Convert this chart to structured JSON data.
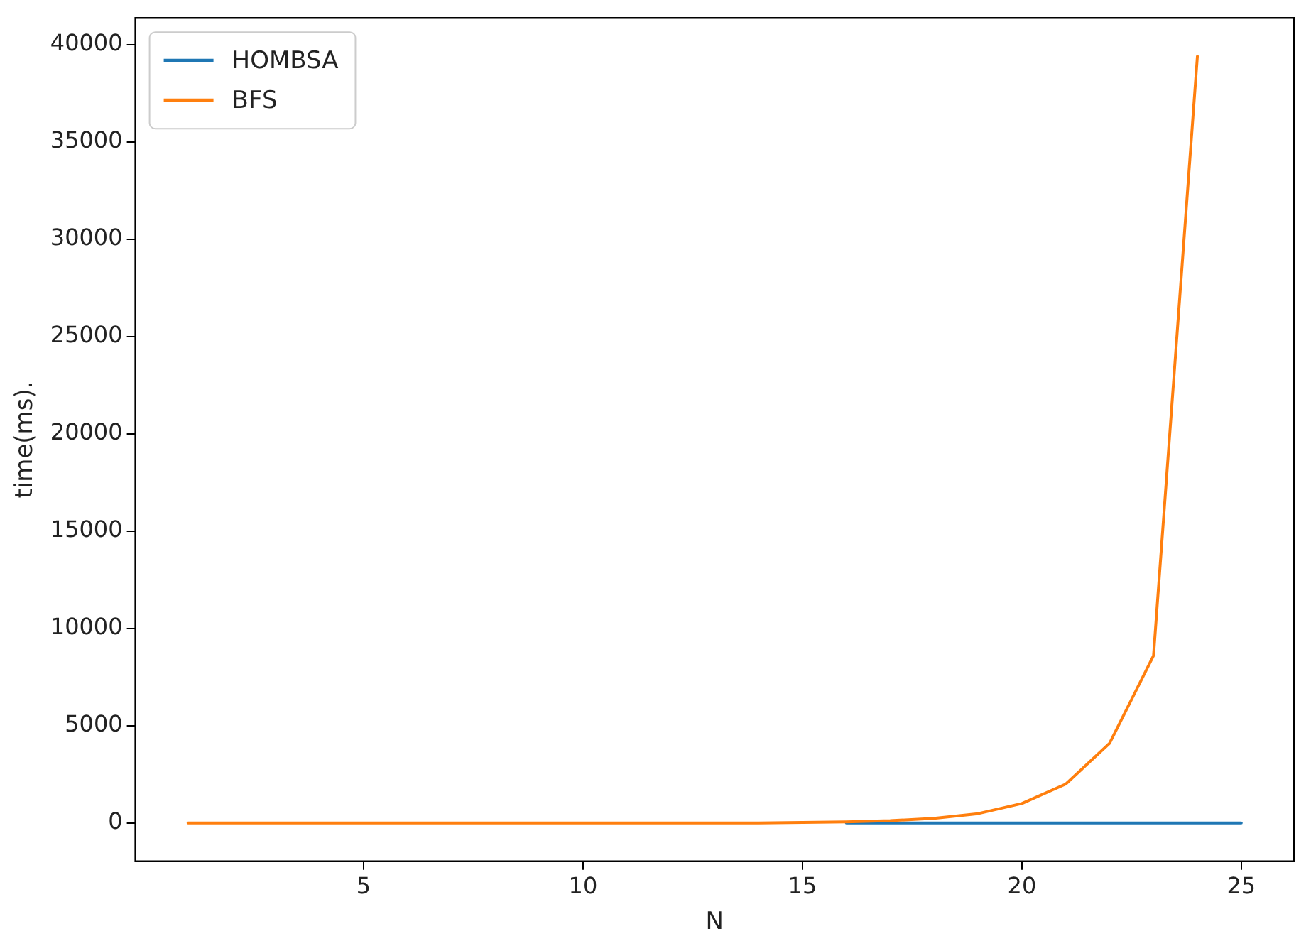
{
  "chart_data": {
    "type": "line",
    "xlabel": "N",
    "ylabel": "time(ms).",
    "x": [
      1,
      2,
      3,
      4,
      5,
      6,
      7,
      8,
      9,
      10,
      11,
      12,
      13,
      14,
      15,
      16,
      17,
      18,
      19,
      20,
      21,
      22,
      23,
      24,
      25
    ],
    "series": [
      {
        "name": "HOMBSA",
        "color": "#1f77b4",
        "values": [
          null,
          null,
          null,
          null,
          null,
          null,
          null,
          null,
          null,
          null,
          null,
          null,
          null,
          null,
          null,
          0,
          0,
          0,
          0,
          0,
          0,
          0,
          0,
          0,
          0
        ]
      },
      {
        "name": "BFS",
        "color": "#ff7f0e",
        "values": [
          0,
          0,
          0,
          0,
          0,
          0,
          0,
          0,
          0,
          0,
          0,
          0,
          0,
          0,
          30,
          60,
          120,
          240,
          480,
          1000,
          2000,
          4100,
          8600,
          39400,
          null
        ]
      }
    ],
    "xlim": [
      -0.2,
      26.2
    ],
    "xticks": [
      5,
      10,
      15,
      20,
      25
    ],
    "ylim": [
      -1970,
      41370
    ],
    "yticks": [
      0,
      5000,
      10000,
      15000,
      20000,
      25000,
      30000,
      35000,
      40000
    ],
    "legend": "top left",
    "grid": false,
    "marker": "none",
    "line_style": "solid"
  }
}
